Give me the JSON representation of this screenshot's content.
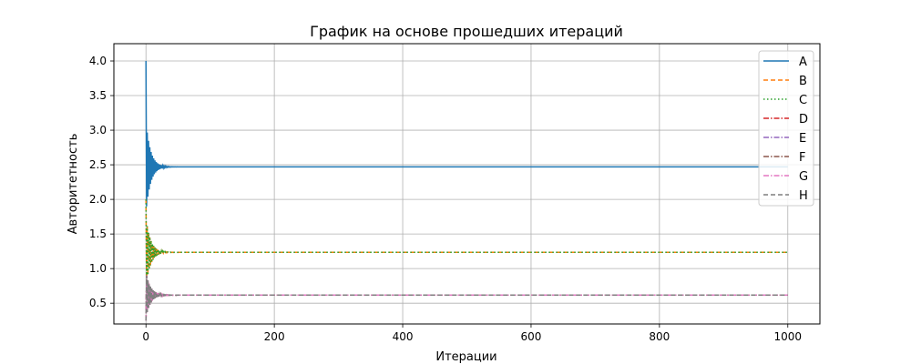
{
  "chart_data": {
    "type": "line",
    "title": "График на основе прошедших итераций",
    "xlabel": "Итерации",
    "ylabel": "Авторитетность",
    "xlim": [
      -50,
      1050
    ],
    "ylim": [
      0.2,
      4.25
    ],
    "xticks": [
      0,
      200,
      400,
      600,
      800,
      1000
    ],
    "yticks": [
      0.5,
      1.0,
      1.5,
      2.0,
      2.5,
      3.0,
      3.5,
      4.0
    ],
    "xtick_labels": [
      "0",
      "200",
      "400",
      "600",
      "800",
      "1000"
    ],
    "ytick_labels": [
      "0.5",
      "1.0",
      "1.5",
      "2.0",
      "2.5",
      "3.0",
      "3.5",
      "4.0"
    ],
    "grid": true,
    "legend_position": "top-right",
    "iterations": 1000,
    "series": [
      {
        "name": "A",
        "color": "#1f77b4",
        "dash": "solid",
        "start": 4.0,
        "first_drop": 1.9,
        "final": 2.47
      },
      {
        "name": "B",
        "color": "#ff7f0e",
        "dash": "dashed",
        "start": 2.0,
        "first_drop": 0.8,
        "final": 1.235
      },
      {
        "name": "C",
        "color": "#2ca02c",
        "dash": "dotted",
        "start": 2.0,
        "first_drop": 0.8,
        "final": 1.235
      },
      {
        "name": "D",
        "color": "#d62728",
        "dash": "dashdot",
        "start": 0.25,
        "first_drop": 0.9,
        "final": 0.617
      },
      {
        "name": "E",
        "color": "#9467bd",
        "dash": "dashdot",
        "start": 0.25,
        "first_drop": 0.9,
        "final": 0.617
      },
      {
        "name": "F",
        "color": "#8c564b",
        "dash": "dashdot",
        "start": 0.25,
        "first_drop": 0.9,
        "final": 0.617
      },
      {
        "name": "G",
        "color": "#e377c2",
        "dash": "dashdot",
        "start": 0.25,
        "first_drop": 0.9,
        "final": 0.617
      },
      {
        "name": "H",
        "color": "#7f7f7f",
        "dash": "dashed",
        "start": 0.25,
        "first_drop": 0.9,
        "final": 0.617
      }
    ]
  }
}
